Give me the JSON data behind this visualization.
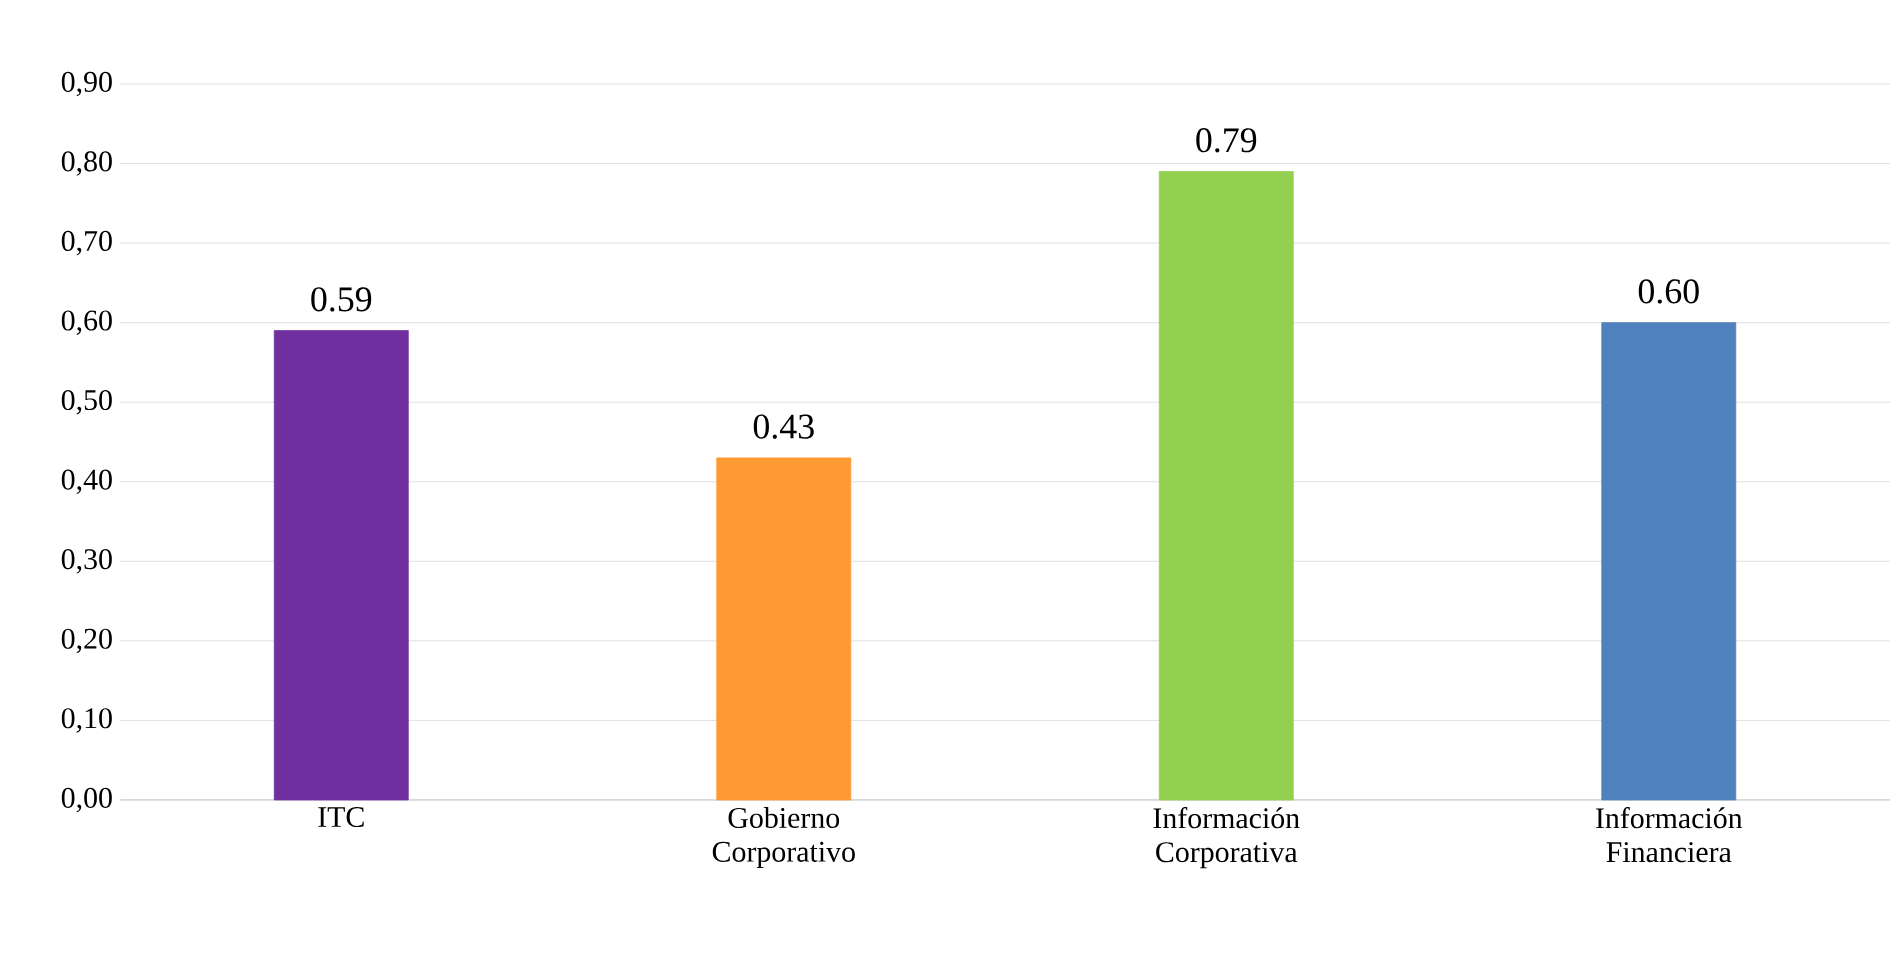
{
  "chart_data": {
    "type": "bar",
    "categories": [
      "ITC",
      "Gobierno Corporativo",
      "Información Corporativa",
      "Información Financiera"
    ],
    "values": [
      0.59,
      0.43,
      0.79,
      0.6
    ],
    "colors": [
      "#7030a0",
      "#ff9933",
      "#92d050",
      "#4f81bd"
    ],
    "value_labels": [
      "0.59",
      "0.43",
      "0.79",
      "0.60"
    ],
    "ylim": [
      0,
      0.9
    ],
    "yticks": [
      {
        "value": 0,
        "label": "0,00"
      },
      {
        "value": 0.1,
        "label": "0,10"
      },
      {
        "value": 0.2,
        "label": "0,20"
      },
      {
        "value": 0.3,
        "label": "0,30"
      },
      {
        "value": 0.4,
        "label": "0,40"
      },
      {
        "value": 0.5,
        "label": "0,50"
      },
      {
        "value": 0.6,
        "label": "0,60"
      },
      {
        "value": 0.7,
        "label": "0,70"
      },
      {
        "value": 0.8,
        "label": "0,80"
      },
      {
        "value": 0.9,
        "label": "0,90"
      }
    ],
    "grid": "y"
  }
}
